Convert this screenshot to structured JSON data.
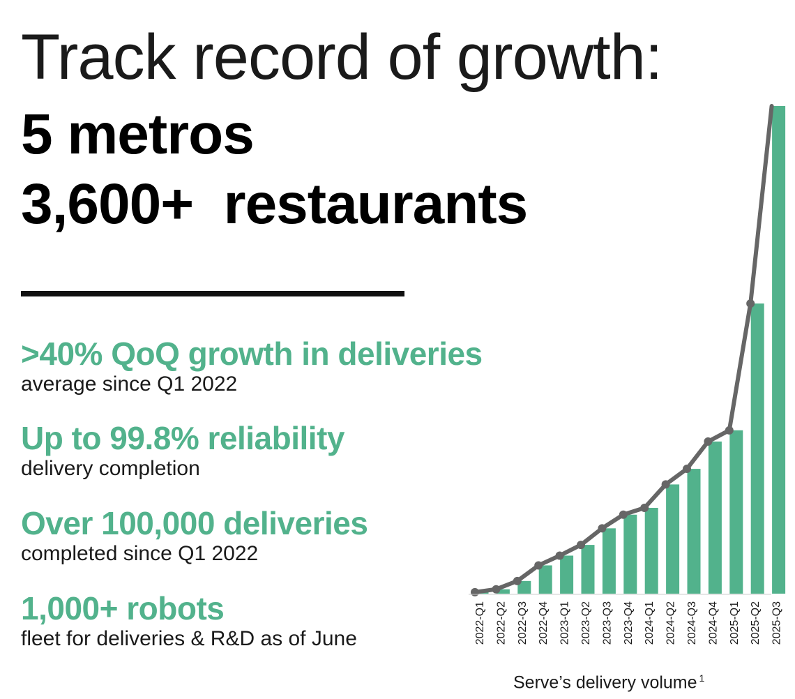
{
  "header": {
    "title": "Track record of growth:",
    "line1": "5 metros",
    "line2": "3,600+  restaurants"
  },
  "stats": [
    {
      "head": ">40% QoQ growth in deliveries",
      "sub": "average since Q1 2022"
    },
    {
      "head": "Up to 99.8% reliability",
      "sub": "delivery completion"
    },
    {
      "head": "Over 100,000 deliveries",
      "sub": "completed since Q1 2022"
    },
    {
      "head": "1,000+ robots",
      "sub": "fleet for deliveries & R&D as of June"
    }
  ],
  "colors": {
    "bar": "#52b28c",
    "line": "#666666",
    "accent": "#52b28c"
  },
  "chart_data": {
    "type": "bar",
    "title": "Serve’s delivery volume",
    "footnote": "1",
    "categories": [
      "2022-Q1",
      "2022-Q2",
      "2022-Q3",
      "2022-Q4",
      "2023-Q1",
      "2023-Q2",
      "2023-Q3",
      "2023-Q4",
      "2024-Q1",
      "2024-Q2",
      "2024-Q3",
      "2024-Q4",
      "2025-Q1",
      "2025-Q2",
      "2025-Q3"
    ],
    "values": [
      0.3,
      0.9,
      2.6,
      5.8,
      7.8,
      10.0,
      13.4,
      16.2,
      17.6,
      22.4,
      25.6,
      31.2,
      33.5,
      59.5,
      100
    ],
    "ylim": [
      0,
      100
    ],
    "overlay": "line",
    "grid": false,
    "legend": "none"
  }
}
